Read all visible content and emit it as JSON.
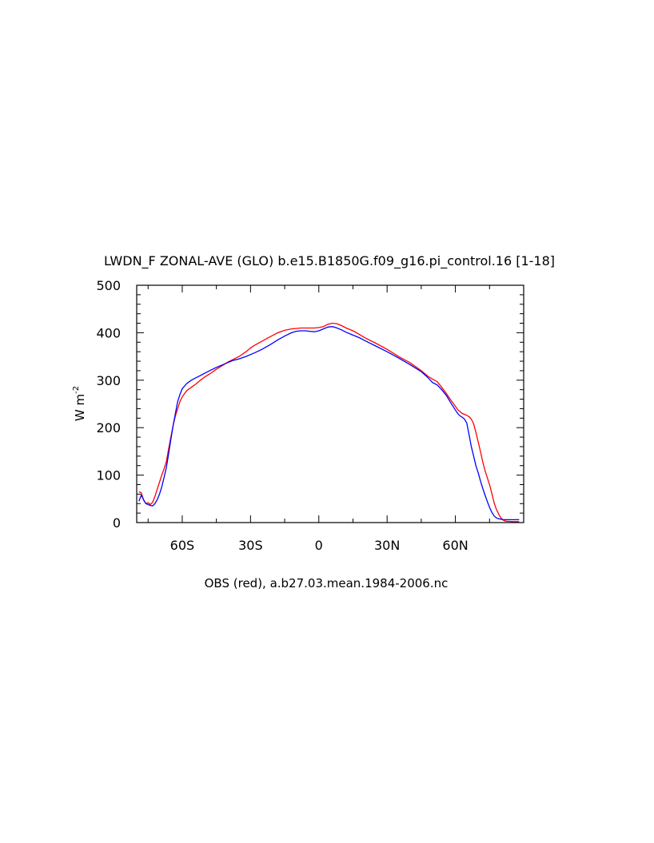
{
  "chart_data": {
    "type": "line",
    "title": "LWDN_F ZONAL-AVE (GLO) b.e15.B1850G.f09_g16.pi_control.16 [1-18]",
    "xlabel": "OBS (red), a.b27.03.mean.1984-2006.nc",
    "ylabel": "W m",
    "ylabel_superscript": "-2",
    "xlim": [
      -80,
      90
    ],
    "ylim": [
      0,
      500
    ],
    "x_ticks": [
      {
        "value": -60,
        "label": "60S"
      },
      {
        "value": -30,
        "label": "30S"
      },
      {
        "value": 0,
        "label": "0"
      },
      {
        "value": 30,
        "label": "30N"
      },
      {
        "value": 60,
        "label": "60N"
      }
    ],
    "y_ticks": [
      {
        "value": 0,
        "label": "0"
      },
      {
        "value": 100,
        "label": "100"
      },
      {
        "value": 200,
        "label": "200"
      },
      {
        "value": 300,
        "label": "300"
      },
      {
        "value": 400,
        "label": "400"
      },
      {
        "value": 500,
        "label": "500"
      }
    ],
    "grid": false,
    "series": [
      {
        "color": "#ff0000",
        "x": [
          -79,
          -78,
          -77,
          -76,
          -75,
          -74,
          -73,
          -72,
          -71,
          -70,
          -69,
          -68,
          -67,
          -66,
          -65,
          -64,
          -63,
          -62,
          -61,
          -60,
          -58,
          -56,
          -54,
          -52,
          -50,
          -48,
          -45,
          -42,
          -40,
          -38,
          -35,
          -32,
          -30,
          -28,
          -25,
          -22,
          -20,
          -18,
          -15,
          -12,
          -10,
          -8,
          -6,
          -4,
          -2,
          0,
          2,
          4,
          6,
          8,
          10,
          12,
          15,
          18,
          20,
          25,
          30,
          35,
          40,
          45,
          48,
          50,
          52,
          54,
          56,
          58,
          60,
          61,
          62,
          63,
          64,
          65,
          66,
          67,
          68,
          69,
          70,
          71,
          72,
          73,
          74,
          75,
          76,
          77,
          78,
          79,
          80,
          81,
          82,
          85,
          88
        ],
        "values": [
          65,
          63,
          48,
          40,
          42,
          38,
          43,
          55,
          70,
          85,
          100,
          113,
          128,
          155,
          180,
          205,
          225,
          240,
          255,
          265,
          278,
          285,
          292,
          300,
          307,
          313,
          323,
          332,
          338,
          343,
          350,
          360,
          368,
          374,
          382,
          390,
          395,
          400,
          405,
          408,
          409,
          410,
          410,
          410,
          410,
          411,
          413,
          418,
          420,
          419,
          415,
          410,
          404,
          396,
          390,
          378,
          365,
          350,
          337,
          320,
          308,
          302,
          297,
          285,
          272,
          258,
          245,
          238,
          234,
          230,
          228,
          226,
          223,
          218,
          208,
          190,
          170,
          150,
          128,
          110,
          95,
          80,
          62,
          42,
          28,
          18,
          10,
          5,
          3,
          2,
          2
        ]
      },
      {
        "color": "#0000ff",
        "x": [
          -79,
          -78,
          -77,
          -76,
          -75,
          -74,
          -73,
          -72,
          -71,
          -70,
          -69,
          -68,
          -67,
          -66,
          -65,
          -64,
          -63,
          -62,
          -61,
          -60,
          -58,
          -56,
          -54,
          -52,
          -50,
          -48,
          -45,
          -42,
          -40,
          -38,
          -35,
          -32,
          -30,
          -28,
          -25,
          -22,
          -20,
          -18,
          -15,
          -12,
          -10,
          -8,
          -6,
          -4,
          -2,
          0,
          2,
          4,
          6,
          8,
          10,
          12,
          15,
          18,
          20,
          25,
          30,
          35,
          40,
          45,
          48,
          50,
          52,
          54,
          56,
          58,
          60,
          61,
          62,
          63,
          64,
          65,
          66,
          67,
          68,
          69,
          70,
          71,
          72,
          73,
          74,
          75,
          76,
          77,
          78,
          79,
          80,
          81,
          82,
          85,
          88
        ],
        "values": [
          45,
          58,
          48,
          40,
          38,
          36,
          35,
          40,
          48,
          60,
          75,
          95,
          115,
          145,
          175,
          205,
          230,
          255,
          270,
          282,
          293,
          300,
          305,
          310,
          315,
          320,
          327,
          333,
          337,
          341,
          345,
          350,
          354,
          358,
          365,
          373,
          379,
          385,
          393,
          400,
          403,
          404,
          404,
          403,
          402,
          404,
          408,
          412,
          413,
          410,
          406,
          401,
          395,
          389,
          384,
          372,
          360,
          347,
          333,
          318,
          305,
          295,
          290,
          280,
          268,
          252,
          237,
          230,
          225,
          222,
          218,
          210,
          185,
          160,
          140,
          120,
          105,
          88,
          72,
          58,
          45,
          32,
          22,
          14,
          10,
          8,
          7,
          6,
          6,
          6,
          6
        ]
      }
    ]
  }
}
